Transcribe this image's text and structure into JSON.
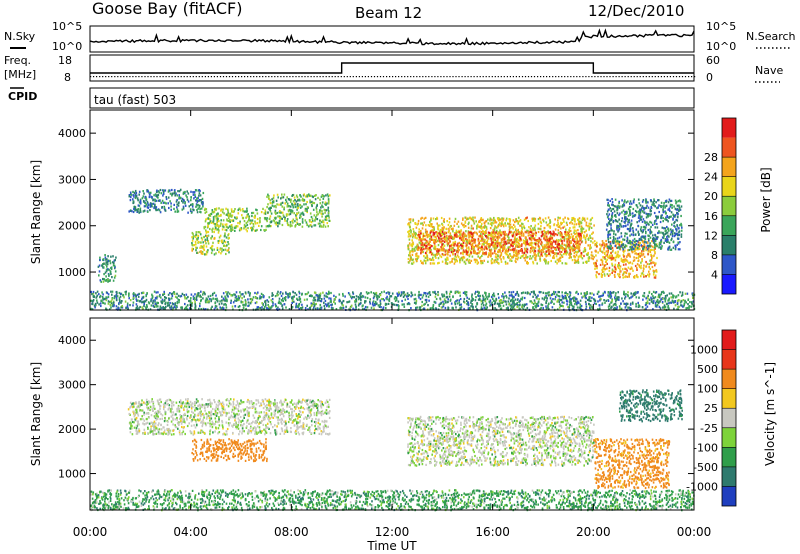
{
  "header": {
    "station": "Goose Bay (fitACF)",
    "beam": "Beam 12",
    "date": "12/Dec/2010"
  },
  "top_panels": {
    "noise": {
      "left_label": "N.Sky",
      "right_label": "N.Search",
      "left_ticks": [
        "10^5",
        "10^0"
      ],
      "right_ticks": [
        "10^5",
        "10^0"
      ]
    },
    "freq": {
      "left_label": "Freq.",
      "left_unit": "[MHz]",
      "right_label": "Nave",
      "left_ticks": [
        "18",
        "8"
      ],
      "right_ticks": [
        "60",
        "0"
      ],
      "cpid_label": "CPID",
      "program": "tau (fast) 503",
      "nave_step_hours": [
        10.0,
        20.0
      ],
      "nave_low": 2,
      "nave_high": 60
    }
  },
  "chart_data": [
    {
      "type": "heatmap",
      "name": "power",
      "ylabel": "Slant Range [km]",
      "xlabel": "",
      "xlim": [
        0,
        24
      ],
      "ylim": [
        180,
        4500
      ],
      "yticks": [
        1000,
        2000,
        3000,
        4000
      ],
      "colorbar": {
        "label": "Power [dB]",
        "ticks": [
          "4",
          "8",
          "12",
          "16",
          "20",
          "24",
          "28"
        ],
        "colors": [
          "#1a1aff",
          "#2e57c8",
          "#2a7f6a",
          "#3aa55a",
          "#8bcc3c",
          "#e9d51a",
          "#f4a41c",
          "#ee5520",
          "#e21b1b"
        ]
      },
      "echo_regions": [
        {
          "t0": 0.0,
          "t1": 24.0,
          "r0": 200,
          "r1": 600,
          "value": 10
        },
        {
          "t0": 0.3,
          "t1": 1.0,
          "r0": 800,
          "r1": 1400,
          "value": 10
        },
        {
          "t0": 1.5,
          "t1": 4.5,
          "r0": 2300,
          "r1": 2800,
          "value": 9
        },
        {
          "t0": 4.5,
          "t1": 7.0,
          "r0": 1900,
          "r1": 2400,
          "value": 16
        },
        {
          "t0": 7.0,
          "t1": 9.5,
          "r0": 2000,
          "r1": 2700,
          "value": 14
        },
        {
          "t0": 4.0,
          "t1": 5.5,
          "r0": 1400,
          "r1": 1900,
          "value": 17
        },
        {
          "t0": 12.6,
          "t1": 20.0,
          "r0": 1200,
          "r1": 2200,
          "value": 20
        },
        {
          "t0": 13.0,
          "t1": 19.5,
          "r0": 1400,
          "r1": 1900,
          "value": 26
        },
        {
          "t0": 20.0,
          "t1": 22.5,
          "r0": 900,
          "r1": 1700,
          "value": 22
        },
        {
          "t0": 20.5,
          "t1": 23.5,
          "r0": 1500,
          "r1": 2600,
          "value": 9
        }
      ]
    },
    {
      "type": "heatmap",
      "name": "velocity",
      "ylabel": "Slant Range [km]",
      "xlabel": "Time UT",
      "xlim": [
        0,
        24
      ],
      "ylim": [
        180,
        4500
      ],
      "yticks": [
        1000,
        2000,
        3000,
        4000
      ],
      "xticks": [
        "00:00",
        "04:00",
        "08:00",
        "12:00",
        "16:00",
        "20:00",
        "00:00"
      ],
      "colorbar": {
        "label": "Velocity [m s^-1]",
        "ticks": [
          "1000",
          "500",
          "100",
          "25",
          "-25",
          "-100",
          "-500",
          "-1000"
        ],
        "colors": [
          "#1f3fbf",
          "#2e7a6e",
          "#2f9e4a",
          "#7dd33a",
          "#c8c8c0",
          "#f2c81f",
          "#f08a1d",
          "#e8361a",
          "#e21b1b"
        ]
      },
      "echo_regions": [
        {
          "t0": 0.0,
          "t1": 24.0,
          "r0": 200,
          "r1": 650,
          "value": 60
        },
        {
          "t0": 1.5,
          "t1": 9.5,
          "r0": 1900,
          "r1": 2700,
          "value": 0
        },
        {
          "t0": 4.0,
          "t1": 7.0,
          "r0": 1300,
          "r1": 1800,
          "value": -300
        },
        {
          "t0": 12.6,
          "t1": 20.0,
          "r0": 1200,
          "r1": 2300,
          "value": 0
        },
        {
          "t0": 20.0,
          "t1": 23.0,
          "r0": 700,
          "r1": 1800,
          "value": -200
        },
        {
          "t0": 21.0,
          "t1": 23.5,
          "r0": 2200,
          "r1": 2900,
          "value": 200
        }
      ]
    }
  ]
}
